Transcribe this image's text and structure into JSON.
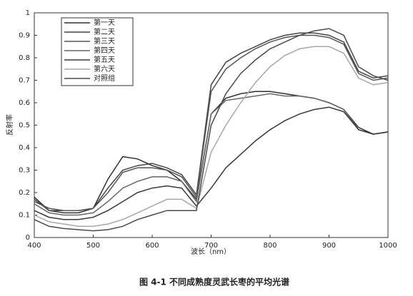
{
  "chart_data": {
    "type": "line",
    "title": "图 4-1   不同成熟度灵武长枣的平均光谱",
    "x_label": "波长（nm）",
    "y_label": "反射率",
    "x": [
      400,
      425,
      450,
      475,
      500,
      525,
      550,
      575,
      600,
      625,
      650,
      675,
      700,
      725,
      750,
      775,
      800,
      825,
      850,
      875,
      900,
      925,
      950,
      975,
      1000
    ],
    "xlim": [
      400,
      1000
    ],
    "xticks": [
      400,
      500,
      600,
      700,
      800,
      900,
      1000
    ],
    "ylim": [
      0,
      1
    ],
    "yticks": [
      0,
      0.1,
      0.2,
      0.3,
      0.4,
      0.5,
      0.6,
      0.7,
      0.8,
      0.9,
      1
    ],
    "grid": false,
    "legend": "upper left",
    "series": [
      {
        "name": "第一天",
        "color": "#303030",
        "values": [
          0.18,
          0.12,
          0.11,
          0.11,
          0.13,
          0.26,
          0.36,
          0.35,
          0.32,
          0.3,
          0.25,
          0.17,
          0.55,
          0.62,
          0.64,
          0.65,
          0.65,
          0.64,
          0.63,
          0.62,
          0.6,
          0.57,
          0.49,
          0.46,
          0.47
        ]
      },
      {
        "name": "第二天",
        "color": "#454545",
        "values": [
          0.17,
          0.12,
          0.12,
          0.12,
          0.13,
          0.22,
          0.3,
          0.32,
          0.33,
          0.31,
          0.28,
          0.19,
          0.68,
          0.78,
          0.82,
          0.85,
          0.88,
          0.9,
          0.91,
          0.91,
          0.9,
          0.87,
          0.74,
          0.71,
          0.72
        ]
      },
      {
        "name": "第三天",
        "color": "#555555",
        "values": [
          0.16,
          0.13,
          0.12,
          0.12,
          0.13,
          0.2,
          0.29,
          0.31,
          0.31,
          0.3,
          0.27,
          0.18,
          0.65,
          0.75,
          0.8,
          0.84,
          0.87,
          0.89,
          0.9,
          0.9,
          0.89,
          0.86,
          0.73,
          0.7,
          0.71
        ]
      },
      {
        "name": "第四天",
        "color": "#666666",
        "values": [
          0.15,
          0.11,
          0.1,
          0.1,
          0.11,
          0.16,
          0.22,
          0.25,
          0.27,
          0.27,
          0.25,
          0.16,
          0.55,
          0.61,
          0.62,
          0.63,
          0.64,
          0.63,
          0.63,
          0.62,
          0.6,
          0.57,
          0.48,
          0.46,
          0.47
        ]
      },
      {
        "name": "第五天",
        "color": "#3a3a3a",
        "values": [
          0.12,
          0.09,
          0.08,
          0.08,
          0.09,
          0.12,
          0.16,
          0.2,
          0.22,
          0.23,
          0.22,
          0.14,
          0.22,
          0.31,
          0.37,
          0.43,
          0.48,
          0.52,
          0.55,
          0.57,
          0.58,
          0.56,
          0.48,
          0.46,
          0.47
        ]
      },
      {
        "name": "第六天",
        "color": "#a8a8a8",
        "values": [
          0.1,
          0.07,
          0.06,
          0.05,
          0.05,
          0.06,
          0.08,
          0.11,
          0.14,
          0.17,
          0.17,
          0.13,
          0.38,
          0.5,
          0.6,
          0.69,
          0.76,
          0.81,
          0.84,
          0.85,
          0.85,
          0.82,
          0.71,
          0.68,
          0.69
        ]
      },
      {
        "name": "对照组",
        "color": "#4a4a4a",
        "values": [
          0.08,
          0.05,
          0.04,
          0.035,
          0.03,
          0.035,
          0.05,
          0.08,
          0.1,
          0.12,
          0.12,
          0.12,
          0.5,
          0.64,
          0.73,
          0.79,
          0.84,
          0.87,
          0.9,
          0.92,
          0.93,
          0.9,
          0.76,
          0.72,
          0.7
        ]
      }
    ]
  }
}
